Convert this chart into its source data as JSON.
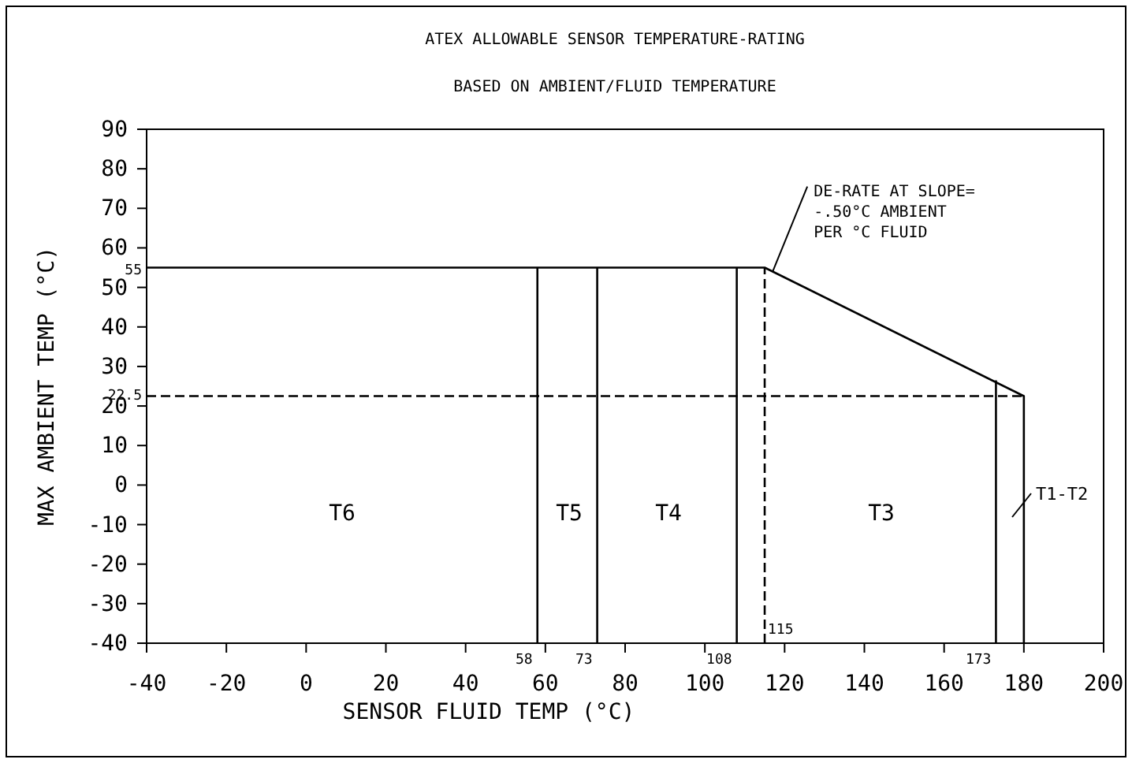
{
  "chart_data": {
    "type": "line",
    "title": "ATEX ALLOWABLE SENSOR TEMPERATURE-RATING",
    "subtitle": "BASED ON AMBIENT/FLUID TEMPERATURE",
    "xlabel": "SENSOR FLUID TEMP (°C)",
    "ylabel": "MAX AMBIENT TEMP (°C)",
    "xlim": [
      -40,
      200
    ],
    "ylim": [
      -40,
      90
    ],
    "xticks": [
      -40,
      -20,
      0,
      20,
      40,
      60,
      80,
      100,
      120,
      140,
      160,
      180,
      200
    ],
    "yticks": [
      -40,
      -30,
      -20,
      -10,
      0,
      10,
      20,
      30,
      40,
      50,
      60,
      70,
      80,
      90
    ],
    "grid": false,
    "marker": "none",
    "series": [
      {
        "color": "#000000",
        "x": [
          -40,
          115,
          180,
          180
        ],
        "values": [
          55,
          55,
          22.5,
          -40
        ]
      },
      {
        "color": "#000000",
        "x": [
          58,
          58
        ],
        "values": [
          -40,
          55
        ]
      },
      {
        "color": "#000000",
        "x": [
          73,
          73
        ],
        "values": [
          -40,
          55
        ]
      },
      {
        "color": "#000000",
        "x": [
          108,
          108
        ],
        "values": [
          -40,
          55
        ]
      },
      {
        "color": "#000000",
        "x": [
          173,
          173
        ],
        "values": [
          -40,
          26.5
        ]
      },
      {
        "color": "#000000",
        "x": [
          115,
          115
        ],
        "values": [
          -40,
          55
        ],
        "line_style": "dashed"
      },
      {
        "color": "#000000",
        "x": [
          -40,
          180
        ],
        "values": [
          22.5,
          22.5
        ],
        "line_style": "dashed"
      }
    ],
    "annotations": [
      {
        "text": "DE-RATE AT SLOPE=\n-.50°C AMBIENT\nPER °C FLUID",
        "x": 117,
        "y": 54
      },
      "T1-T2",
      {
        "text": "55",
        "x": -40,
        "y": 55
      },
      {
        "text": "22.5",
        "x": -40,
        "y": 22.5
      },
      {
        "text": "58",
        "x": 58,
        "y": -40
      },
      {
        "text": "73",
        "x": 73,
        "y": -40
      },
      {
        "text": "108",
        "x": 108,
        "y": -40
      },
      {
        "text": "115",
        "x": 115,
        "y": -40
      },
      {
        "text": "173",
        "x": 173,
        "y": -40
      },
      "T6",
      "T5",
      "T4",
      "T3"
    ]
  }
}
